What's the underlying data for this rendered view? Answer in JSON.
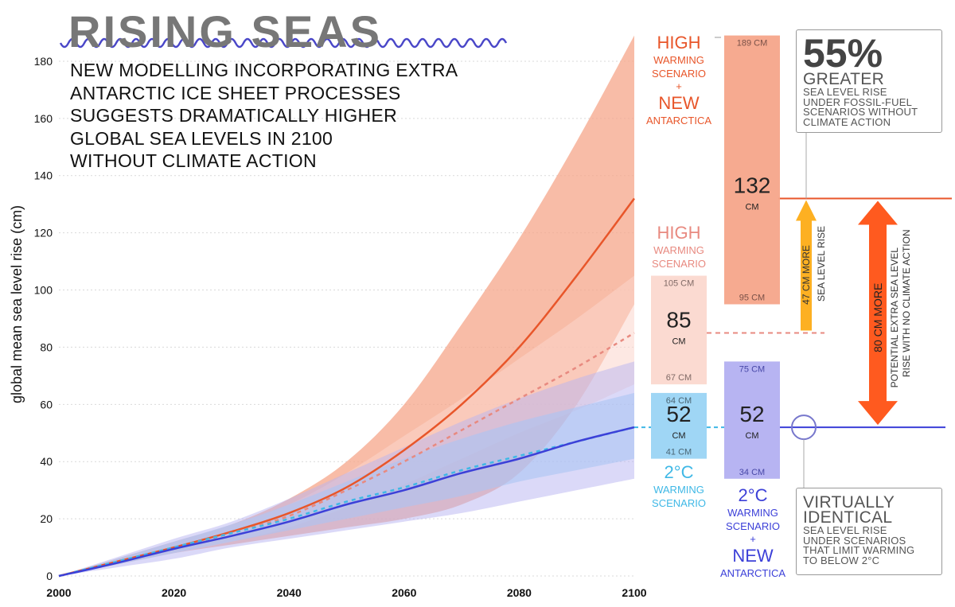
{
  "title": "RISING SEAS",
  "subtitle": "NEW MODELLING INCORPORATING EXTRA\nANTARCTIC ICE SHEET PROCESSES\nSUGGESTS DRAMATICALLY HIGHER\nGLOBAL SEA LEVELS IN 2100\nWITHOUT CLIMATE ACTION",
  "colors": {
    "high_new": "#e8562a",
    "high_new_band": "#f5a58a",
    "high": "#e88a80",
    "high_band": "#fbd6cc",
    "low": "#3fb8e6",
    "low_band": "#9fd6f5",
    "low_new": "#3c40d8",
    "low_new_band": "#b7b4f2",
    "arrow_orange": "#ff5a1f",
    "arrow_yellow": "#fdb022",
    "grid": "#d9d9d9",
    "note_border": "#999999"
  },
  "chart_data": {
    "type": "line",
    "title": "RISING SEAS",
    "xlabel": "",
    "ylabel": "global mean sea level rise (cm)",
    "xlim": [
      2000,
      2100
    ],
    "ylim": [
      0,
      190
    ],
    "x_ticks": [
      "2000",
      "2020",
      "2040",
      "2060",
      "2080",
      "2100"
    ],
    "y_ticks": [
      "0",
      "20",
      "40",
      "60",
      "80",
      "100",
      "120",
      "140",
      "160",
      "180"
    ],
    "grid": true,
    "x": [
      2000,
      2010,
      2020,
      2030,
      2040,
      2050,
      2060,
      2070,
      2080,
      2090,
      2100
    ],
    "series": [
      {
        "name": "HIGH WARMING SCENARIO + NEW ANTARCTICA",
        "style": "solid",
        "values": [
          0,
          5,
          10,
          15.5,
          22,
          31,
          44,
          60,
          80,
          105,
          132
        ],
        "band_low": [
          0,
          4,
          8,
          11,
          14,
          17,
          20,
          25,
          36,
          60,
          95
        ],
        "band_high": [
          0,
          6,
          12,
          18,
          27,
          40,
          60,
          88,
          118,
          152,
          189
        ]
      },
      {
        "name": "HIGH WARMING SCENARIO",
        "style": "dashed",
        "values": [
          0,
          5,
          10,
          15,
          21,
          30,
          40,
          51,
          62,
          73,
          85
        ],
        "band_low": [
          0,
          4,
          8,
          12,
          17,
          24,
          32,
          41,
          50,
          58,
          67
        ],
        "band_high": [
          0,
          6,
          12,
          18,
          25,
          36,
          49,
          62,
          76,
          90,
          105
        ]
      },
      {
        "name": "2°C WARMING SCENARIO",
        "style": "dashed",
        "values": [
          0,
          5,
          10,
          15,
          20,
          26,
          31,
          37,
          42,
          47,
          52
        ],
        "band_low": [
          0,
          4,
          8,
          12,
          16,
          20,
          24,
          28,
          33,
          37,
          41
        ],
        "band_high": [
          0,
          6,
          12,
          18,
          25,
          33,
          41,
          48,
          54,
          59,
          64
        ]
      },
      {
        "name": "2°C WARMING SCENARIO + NEW ANTARCTICA",
        "style": "solid",
        "values": [
          0,
          4.5,
          9.5,
          14,
          19,
          25,
          30,
          36,
          41,
          47,
          52
        ],
        "band_low": [
          0,
          3,
          6,
          10,
          13,
          16,
          19,
          22,
          26,
          30,
          34
        ],
        "band_high": [
          0,
          6.5,
          13,
          19,
          27,
          36,
          45,
          54,
          62,
          69,
          75
        ]
      }
    ]
  },
  "scenarios": {
    "high_new": {
      "label_top": "HIGH",
      "label_a": "WARMING",
      "label_b": "SCENARIO",
      "plus": "+",
      "label_new": "NEW",
      "label_ant": "ANTARCTICA",
      "range_high": "189 CM",
      "range_low": "95 CM",
      "median": "132",
      "unit": "CM",
      "range_high_value": 189,
      "range_low_value": 95,
      "median_value": 132
    },
    "high": {
      "label_top": "HIGH",
      "label_a": "WARMING",
      "label_b": "SCENARIO",
      "range_high": "105 CM",
      "range_low": "67 CM",
      "median": "85",
      "unit": "CM",
      "range_high_value": 105,
      "range_low_value": 67,
      "median_value": 85
    },
    "low": {
      "label_top": "2°C",
      "label_a": "WARMING",
      "label_b": "SCENARIO",
      "range_high": "64 CM",
      "range_low": "41 CM",
      "median": "52",
      "unit": "CM",
      "range_high_value": 64,
      "range_low_value": 41,
      "median_value": 52
    },
    "low_new": {
      "label_top": "2°C",
      "label_a": "WARMING",
      "label_b": "SCENARIO",
      "plus": "+",
      "label_new": "NEW",
      "label_ant": "ANTARCTICA",
      "range_high": "75 CM",
      "range_low": "34 CM",
      "median": "52",
      "unit": "CM",
      "range_high_value": 75,
      "range_low_value": 34,
      "median_value": 52
    }
  },
  "arrows": {
    "yellow_a": "47 CM MORE",
    "yellow_b": "SEA LEVEL RISE",
    "orange_a": "80 CM MORE",
    "orange_b": "POTENTIAL EXTRA SEA LEVEL",
    "orange_c": "RISE WITH NO CLIMATE ACTION"
  },
  "callouts": {
    "top": {
      "big": "55%",
      "mid": "GREATER",
      "small": "SEA LEVEL RISE\nUNDER FOSSIL-FUEL\nSCENARIOS WITHOUT\nCLIMATE ACTION"
    },
    "bottom": {
      "mid": "VIRTUALLY\nIDENTICAL",
      "small": "SEA LEVEL RISE\nUNDER SCENARIOS\nTHAT LIMIT WARMING\nTO BELOW 2°C"
    }
  }
}
